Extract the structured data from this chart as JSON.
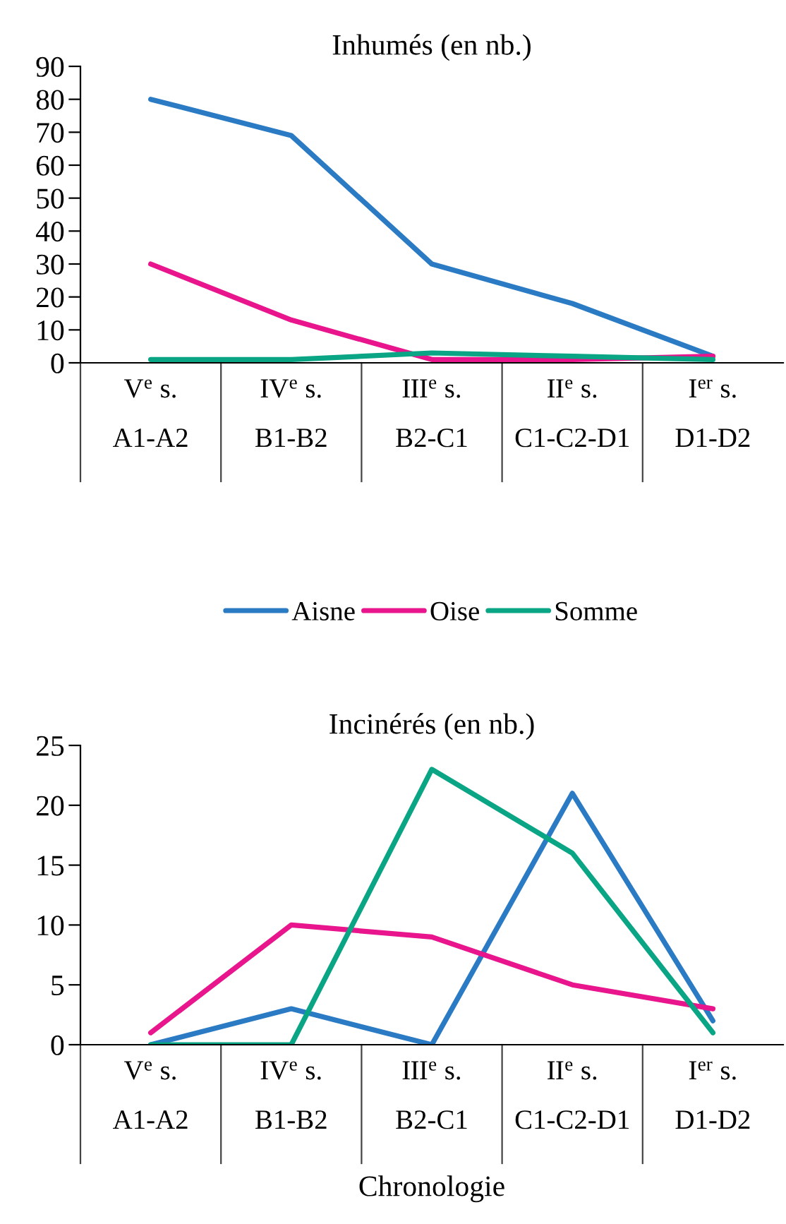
{
  "chart_data": [
    {
      "type": "line",
      "title": "Inhumés (en nb.)",
      "categories": [
        "V$^{e}$ s.\nA1-A2",
        "IV$^{e}$ s.\nB1-B2",
        "III$^{e}$ s.\nB2-C1",
        "II$^{e}$ s.\nC1-C2-D1",
        "I$^{er}$ s.\nD1-D2"
      ],
      "series": [
        {
          "name": "Aisne",
          "color": "#2a7bc4",
          "values": [
            80,
            69,
            30,
            18,
            2
          ]
        },
        {
          "name": "Oise",
          "color": "#e8158c",
          "values": [
            30,
            13,
            1,
            1,
            2
          ]
        },
        {
          "name": "Somme",
          "color": "#0aa585",
          "values": [
            1,
            1,
            3,
            2,
            1
          ]
        }
      ],
      "ylim": [
        0,
        90
      ],
      "yticks": [
        0,
        10,
        20,
        30,
        40,
        50,
        60,
        70,
        80,
        90
      ],
      "legend": "bottom",
      "grid": false
    },
    {
      "type": "line",
      "title": "Incinérés (en nb.)",
      "xlabel": "Chronologie",
      "categories": [
        "V$^{e}$ s.\nA1-A2",
        "IV$^{e}$ s.\nB1-B2",
        "III$^{e}$ s.\nB2-C1",
        "II$^{e}$ s.\nC1-C2-D1",
        "I$^{er}$ s.\nD1-D2"
      ],
      "series": [
        {
          "color": "#2a7bc4",
          "values": [
            0,
            3,
            0,
            21,
            2
          ]
        },
        {
          "color": "#e8158c",
          "values": [
            1,
            10,
            9,
            5,
            3
          ]
        },
        {
          "color": "#0aa585",
          "values": [
            0,
            0,
            23,
            16,
            1
          ]
        }
      ],
      "ylim": [
        0,
        25
      ],
      "yticks": [
        0,
        5,
        10,
        15,
        20,
        25
      ],
      "grid": false
    }
  ]
}
